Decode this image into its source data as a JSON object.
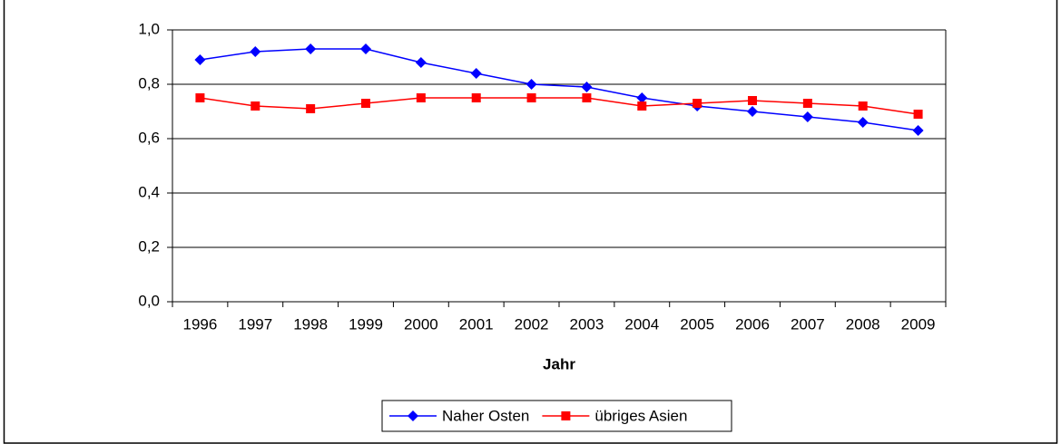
{
  "chart_data": {
    "type": "line",
    "x_label": "Jahr",
    "categories": [
      "1996",
      "1997",
      "1998",
      "1999",
      "2000",
      "2001",
      "2002",
      "2003",
      "2004",
      "2005",
      "2006",
      "2007",
      "2008",
      "2009"
    ],
    "series": [
      {
        "name": "Naher Osten",
        "color": "#0000ff",
        "marker": "diamond",
        "values": [
          0.89,
          0.92,
          0.93,
          0.93,
          0.88,
          0.84,
          0.8,
          0.79,
          0.75,
          0.72,
          0.7,
          0.68,
          0.66,
          0.63
        ]
      },
      {
        "name": "übriges Asien",
        "color": "#ff0000",
        "marker": "square",
        "values": [
          0.75,
          0.72,
          0.71,
          0.73,
          0.75,
          0.75,
          0.75,
          0.75,
          0.72,
          0.73,
          0.74,
          0.73,
          0.72,
          0.69
        ]
      }
    ],
    "ylim": [
      0,
      1
    ],
    "yticks": [
      {
        "value": 0,
        "label": "0,0"
      },
      {
        "value": 0.2,
        "label": "0,2"
      },
      {
        "value": 0.4,
        "label": "0,4"
      },
      {
        "value": 0.6,
        "label": "0,6"
      },
      {
        "value": 0.8,
        "label": "0,8"
      },
      {
        "value": 1,
        "label": "1,0"
      }
    ],
    "grid": true,
    "legend": "bottom"
  }
}
